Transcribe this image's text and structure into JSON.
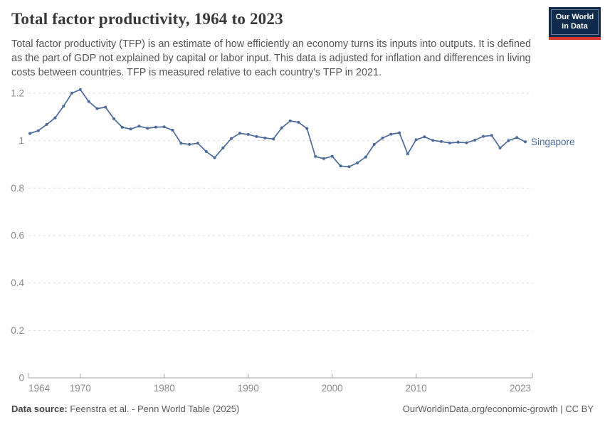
{
  "header": {
    "title": "Total factor productivity, 1964 to 2023",
    "subtitle_line1": "Total factor productivity (TFP) is an estimate of how efficiently an economy turns its inputs into outputs. It is",
    "subtitle_line2": "defined as the part of GDP not explained by capital or labor input. This data is adjusted for inflation and",
    "subtitle_line3": "differences in living costs between countries. TFP is measured relative to each country's TFP in 2021.",
    "logo": {
      "line1": "Our World",
      "line2": "in Data"
    }
  },
  "footer": {
    "source_label": "Data source:",
    "source_text": " Feenstra et al. - Penn World Table (2025)",
    "credit": "OurWorldinData.org/economic-growth | CC BY"
  },
  "chart_data": {
    "type": "line",
    "title": "Total factor productivity, 1964 to 2023",
    "end_label": "Singapore",
    "x": [
      1964,
      1965,
      1966,
      1967,
      1968,
      1969,
      1970,
      1971,
      1972,
      1973,
      1974,
      1975,
      1976,
      1977,
      1978,
      1979,
      1980,
      1981,
      1982,
      1983,
      1984,
      1985,
      1986,
      1987,
      1988,
      1989,
      1990,
      1991,
      1992,
      1993,
      1994,
      1995,
      1996,
      1997,
      1998,
      1999,
      2000,
      2001,
      2002,
      2003,
      2004,
      2005,
      2006,
      2007,
      2008,
      2009,
      2010,
      2011,
      2012,
      2013,
      2014,
      2015,
      2016,
      2017,
      2018,
      2019,
      2020,
      2021,
      2022,
      2023
    ],
    "series": [
      {
        "name": "Singapore",
        "values": [
          1.03,
          1.042,
          1.068,
          1.096,
          1.145,
          1.2,
          1.215,
          1.165,
          1.135,
          1.141,
          1.092,
          1.056,
          1.049,
          1.061,
          1.052,
          1.057,
          1.058,
          1.044,
          0.989,
          0.984,
          0.989,
          0.954,
          0.928,
          0.969,
          1.009,
          1.031,
          1.026,
          1.017,
          1.011,
          1.007,
          1.054,
          1.083,
          1.077,
          1.051,
          0.933,
          0.924,
          0.934,
          0.893,
          0.89,
          0.906,
          0.931,
          0.984,
          1.011,
          1.027,
          1.033,
          0.944,
          1.004,
          1.016,
          1.001,
          0.996,
          0.99,
          0.993,
          0.991,
          1.002,
          1.018,
          1.022,
          0.969,
          1.0,
          1.013,
          0.995
        ]
      }
    ],
    "xticks": [
      1964,
      1970,
      1980,
      1990,
      2000,
      2010,
      2023
    ],
    "yticks": [
      0,
      0.2,
      0.4,
      0.6,
      0.8,
      1,
      1.2
    ],
    "xlim": [
      1964,
      2023
    ],
    "ylim": [
      0,
      1.2
    ],
    "grid": "horizontal-dashed",
    "legend_position": "end-of-line",
    "line_color": "#4c6a9c",
    "tick_label_color": "#8b8b8b",
    "grid_color": "#dcdcdc",
    "axis_color": "#a3a3a3"
  }
}
